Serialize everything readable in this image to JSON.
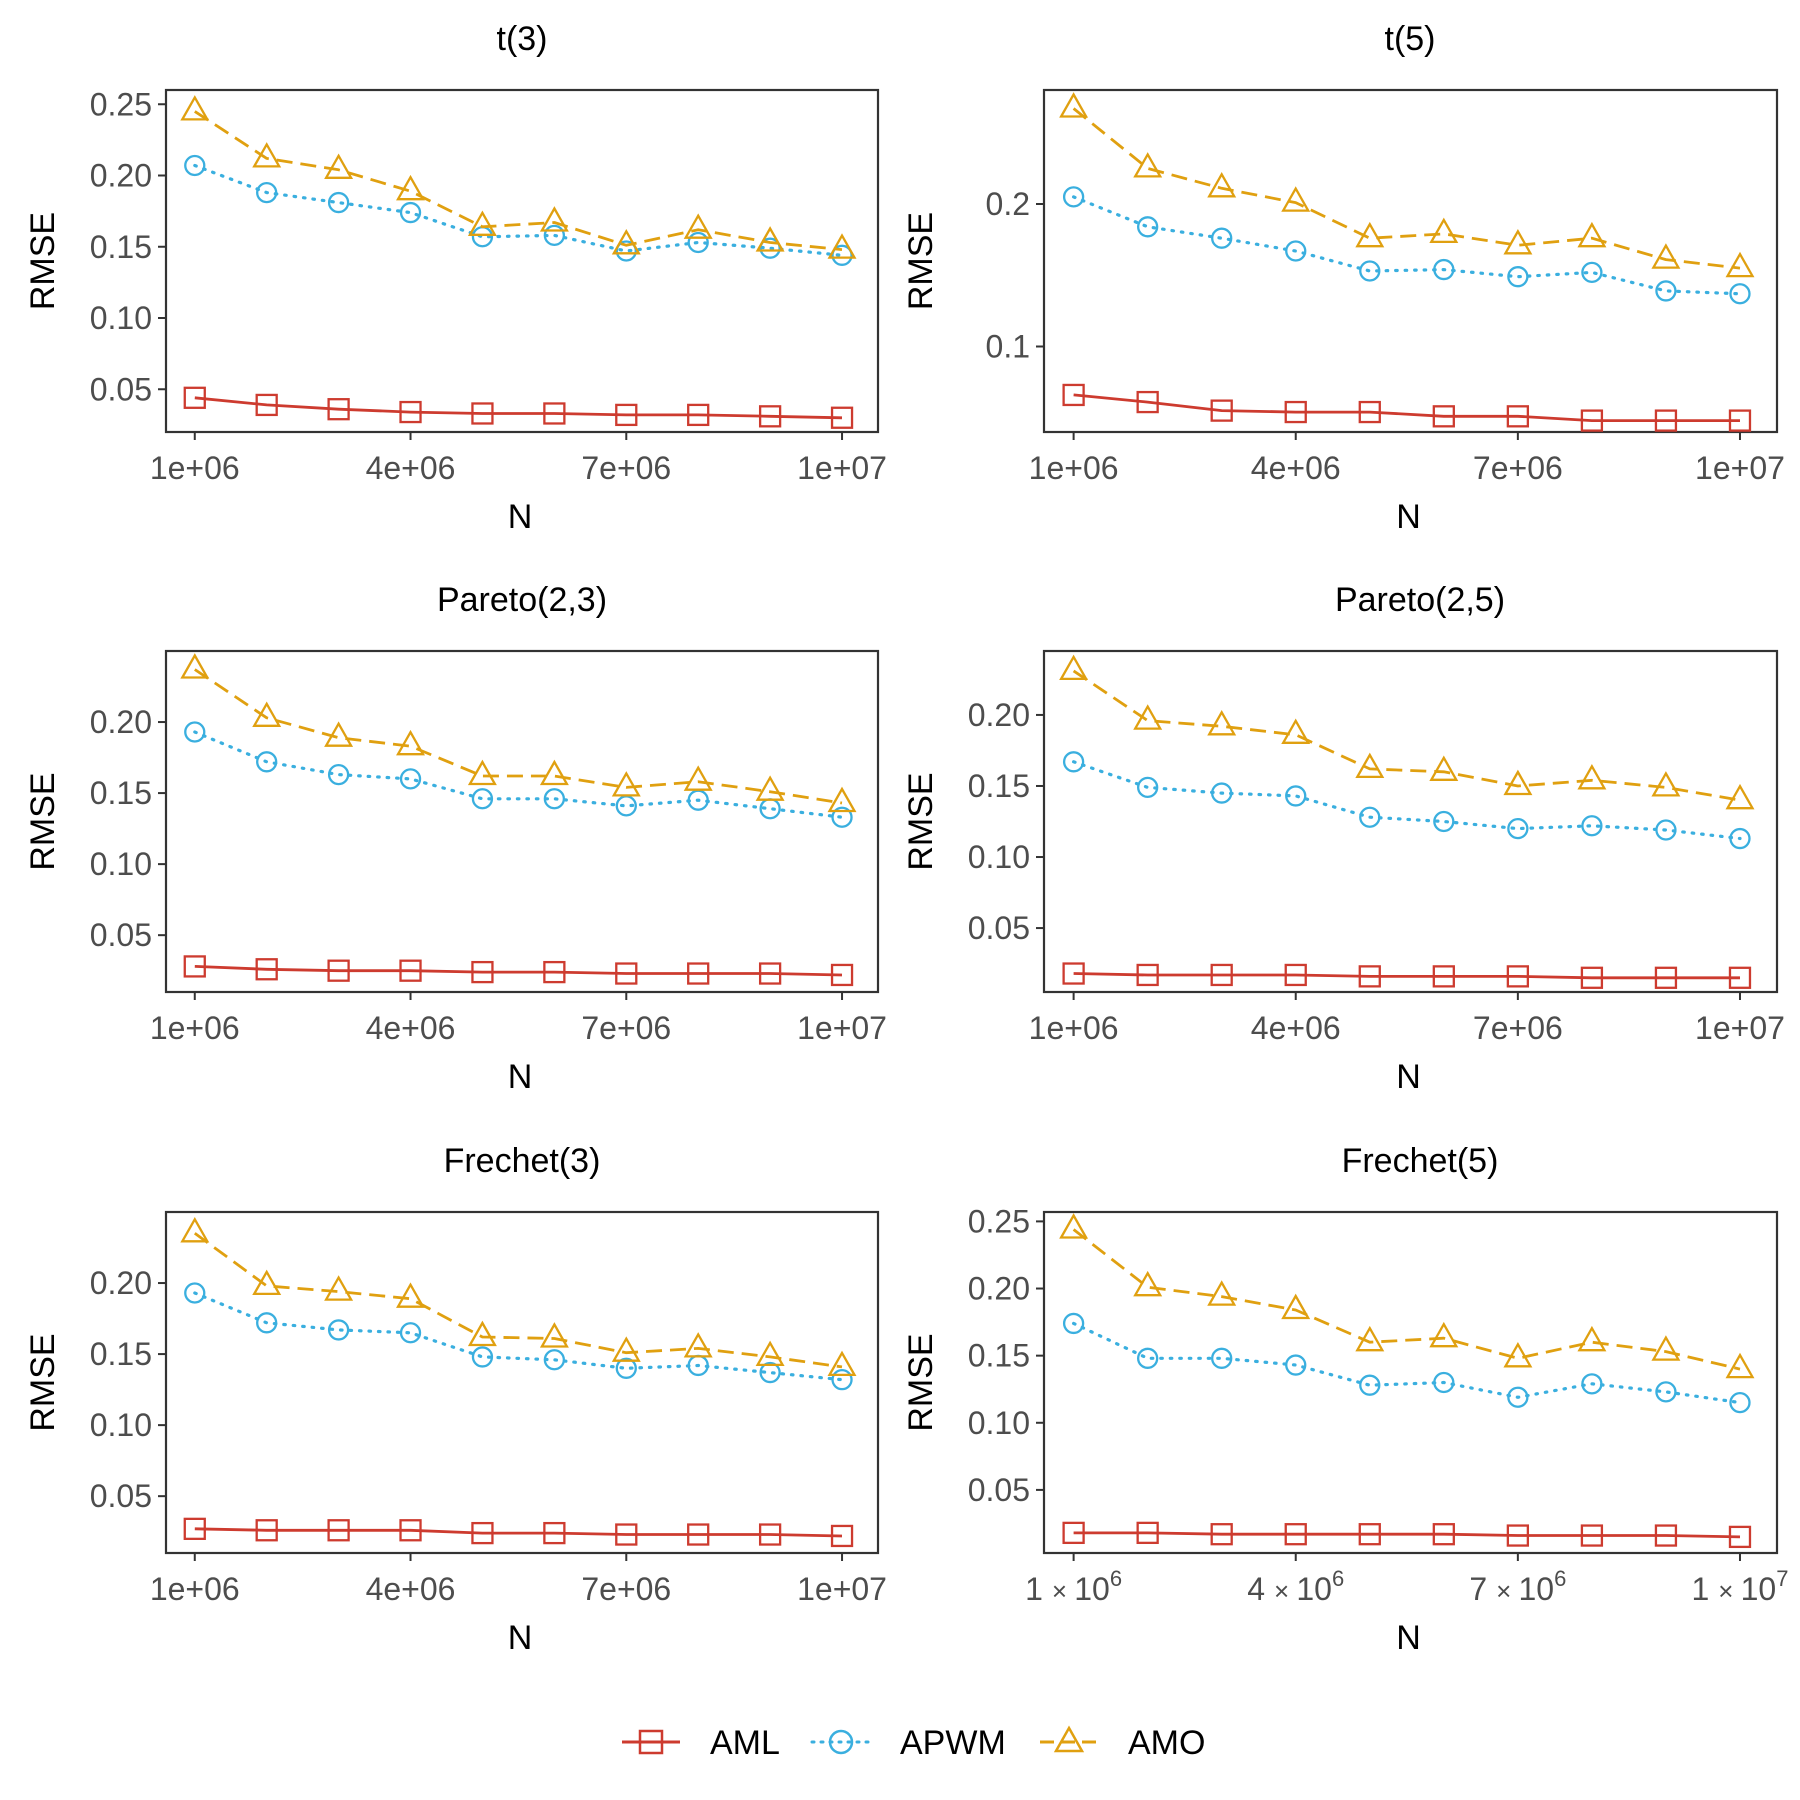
{
  "chart_data": [
    {
      "type": "line",
      "title": "t(3)",
      "xlabel": "N",
      "ylabel": "RMSE",
      "x": [
        1000000,
        2000000,
        3000000,
        4000000,
        5000000,
        6000000,
        7000000,
        8000000,
        9000000,
        10000000
      ],
      "xlim": [
        600000,
        10500000
      ],
      "ylim": [
        0.02,
        0.26
      ],
      "xticks": [
        1000000,
        4000000,
        7000000,
        10000000
      ],
      "xtick_labels": [
        "1e+06",
        "4e+06",
        "7e+06",
        "1e+07"
      ],
      "yticks": [
        0.05,
        0.1,
        0.15,
        0.2,
        0.25
      ],
      "ytick_labels": [
        "0.05",
        "0.10",
        "0.15",
        "0.20",
        "0.25"
      ],
      "series": [
        {
          "name": "AML",
          "values": [
            0.044,
            0.039,
            0.036,
            0.034,
            0.033,
            0.033,
            0.032,
            0.032,
            0.031,
            0.03
          ]
        },
        {
          "name": "APWM",
          "values": [
            0.207,
            0.188,
            0.181,
            0.174,
            0.157,
            0.158,
            0.147,
            0.153,
            0.149,
            0.144
          ]
        },
        {
          "name": "AMO",
          "values": [
            0.245,
            0.212,
            0.204,
            0.189,
            0.164,
            0.167,
            0.151,
            0.162,
            0.153,
            0.148
          ]
        }
      ]
    },
    {
      "type": "line",
      "title": "t(5)",
      "xlabel": "N",
      "ylabel": "RMSE",
      "x": [
        1000000,
        2000000,
        3000000,
        4000000,
        5000000,
        6000000,
        7000000,
        8000000,
        9000000,
        10000000
      ],
      "xlim": [
        600000,
        10500000
      ],
      "ylim": [
        0.04,
        0.28
      ],
      "xticks": [
        1000000,
        4000000,
        7000000,
        10000000
      ],
      "xtick_labels": [
        "1e+06",
        "4e+06",
        "7e+06",
        "1e+07"
      ],
      "yticks": [
        0.1,
        0.2
      ],
      "ytick_labels": [
        "0.1",
        "0.2"
      ],
      "series": [
        {
          "name": "AML",
          "values": [
            0.066,
            0.061,
            0.055,
            0.054,
            0.054,
            0.051,
            0.051,
            0.048,
            0.048,
            0.048
          ]
        },
        {
          "name": "APWM",
          "values": [
            0.205,
            0.184,
            0.176,
            0.167,
            0.153,
            0.154,
            0.149,
            0.152,
            0.139,
            0.137
          ]
        },
        {
          "name": "AMO",
          "values": [
            0.267,
            0.225,
            0.211,
            0.201,
            0.176,
            0.179,
            0.171,
            0.176,
            0.161,
            0.155
          ]
        }
      ]
    },
    {
      "type": "line",
      "title": "Pareto(2,3)",
      "xlabel": "N",
      "ylabel": "RMSE",
      "x": [
        1000000,
        2000000,
        3000000,
        4000000,
        5000000,
        6000000,
        7000000,
        8000000,
        9000000,
        10000000
      ],
      "xlim": [
        600000,
        10500000
      ],
      "ylim": [
        0.01,
        0.25
      ],
      "xticks": [
        1000000,
        4000000,
        7000000,
        10000000
      ],
      "xtick_labels": [
        "1e+06",
        "4e+06",
        "7e+06",
        "1e+07"
      ],
      "yticks": [
        0.05,
        0.1,
        0.15,
        0.2
      ],
      "ytick_labels": [
        "0.05",
        "0.10",
        "0.15",
        "0.20"
      ],
      "series": [
        {
          "name": "AML",
          "values": [
            0.028,
            0.026,
            0.025,
            0.025,
            0.024,
            0.024,
            0.023,
            0.023,
            0.023,
            0.022
          ]
        },
        {
          "name": "APWM",
          "values": [
            0.193,
            0.172,
            0.163,
            0.16,
            0.146,
            0.146,
            0.141,
            0.145,
            0.139,
            0.133
          ]
        },
        {
          "name": "AMO",
          "values": [
            0.237,
            0.203,
            0.189,
            0.183,
            0.162,
            0.162,
            0.154,
            0.158,
            0.151,
            0.143
          ]
        }
      ]
    },
    {
      "type": "line",
      "title": "Pareto(2,5)",
      "xlabel": "N",
      "ylabel": "RMSE",
      "x": [
        1000000,
        2000000,
        3000000,
        4000000,
        5000000,
        6000000,
        7000000,
        8000000,
        9000000,
        10000000
      ],
      "xlim": [
        600000,
        10500000
      ],
      "ylim": [
        0.005,
        0.245
      ],
      "xticks": [
        1000000,
        4000000,
        7000000,
        10000000
      ],
      "xtick_labels": [
        "1e+06",
        "4e+06",
        "7e+06",
        "1e+07"
      ],
      "yticks": [
        0.05,
        0.1,
        0.15,
        0.2
      ],
      "ytick_labels": [
        "0.05",
        "0.10",
        "0.15",
        "0.20"
      ],
      "series": [
        {
          "name": "AML",
          "values": [
            0.018,
            0.017,
            0.017,
            0.017,
            0.016,
            0.016,
            0.016,
            0.015,
            0.015,
            0.015
          ]
        },
        {
          "name": "APWM",
          "values": [
            0.167,
            0.149,
            0.145,
            0.143,
            0.128,
            0.125,
            0.12,
            0.122,
            0.119,
            0.113
          ]
        },
        {
          "name": "AMO",
          "values": [
            0.231,
            0.196,
            0.192,
            0.186,
            0.162,
            0.16,
            0.15,
            0.154,
            0.149,
            0.14
          ]
        }
      ]
    },
    {
      "type": "line",
      "title": "Frechet(3)",
      "xlabel": "N",
      "ylabel": "RMSE",
      "x": [
        1000000,
        2000000,
        3000000,
        4000000,
        5000000,
        6000000,
        7000000,
        8000000,
        9000000,
        10000000
      ],
      "xlim": [
        600000,
        10500000
      ],
      "ylim": [
        0.01,
        0.25
      ],
      "xticks": [
        1000000,
        4000000,
        7000000,
        10000000
      ],
      "xtick_labels": [
        "1e+06",
        "4e+06",
        "7e+06",
        "1e+07"
      ],
      "yticks": [
        0.05,
        0.1,
        0.15,
        0.2
      ],
      "ytick_labels": [
        "0.05",
        "0.10",
        "0.15",
        "0.20"
      ],
      "series": [
        {
          "name": "AML",
          "values": [
            0.027,
            0.026,
            0.026,
            0.026,
            0.024,
            0.024,
            0.023,
            0.023,
            0.023,
            0.022
          ]
        },
        {
          "name": "APWM",
          "values": [
            0.193,
            0.172,
            0.167,
            0.165,
            0.148,
            0.146,
            0.14,
            0.142,
            0.137,
            0.132
          ]
        },
        {
          "name": "AMO",
          "values": [
            0.235,
            0.198,
            0.194,
            0.189,
            0.162,
            0.161,
            0.151,
            0.154,
            0.148,
            0.141
          ]
        }
      ]
    },
    {
      "type": "line",
      "title": "Frechet(5)",
      "xlabel": "N",
      "ylabel": "RMSE",
      "x": [
        1000000,
        2000000,
        3000000,
        4000000,
        5000000,
        6000000,
        7000000,
        8000000,
        9000000,
        10000000
      ],
      "xlim": [
        600000,
        10500000
      ],
      "ylim": [
        0.003,
        0.257
      ],
      "xticks": [
        1000000,
        4000000,
        7000000,
        10000000
      ],
      "xtick_labels": [
        "1",
        "4",
        "7",
        "1"
      ],
      "xtick_mult": "×",
      "xtick_base": "10",
      "xtick_exps": [
        "6",
        "6",
        "6",
        "7"
      ],
      "yticks": [
        0.05,
        0.1,
        0.15,
        0.2,
        0.25
      ],
      "ytick_labels": [
        "0.05",
        "0.10",
        "0.15",
        "0.20",
        "0.25"
      ],
      "series": [
        {
          "name": "AML",
          "values": [
            0.018,
            0.018,
            0.017,
            0.017,
            0.017,
            0.017,
            0.016,
            0.016,
            0.016,
            0.015
          ]
        },
        {
          "name": "APWM",
          "values": [
            0.174,
            0.148,
            0.148,
            0.143,
            0.128,
            0.13,
            0.119,
            0.129,
            0.123,
            0.115
          ]
        },
        {
          "name": "AMO",
          "values": [
            0.244,
            0.201,
            0.194,
            0.184,
            0.16,
            0.163,
            0.148,
            0.16,
            0.153,
            0.14
          ]
        }
      ]
    }
  ],
  "legend": {
    "position": "bottom",
    "items": [
      {
        "name": "AML",
        "color": "#CD3B2F",
        "line": "solid",
        "marker": "square"
      },
      {
        "name": "APWM",
        "color": "#3AAFDF",
        "line": "dotted",
        "marker": "circle"
      },
      {
        "name": "AMO",
        "color": "#E0A010",
        "line": "dashed",
        "marker": "triangle"
      }
    ]
  }
}
